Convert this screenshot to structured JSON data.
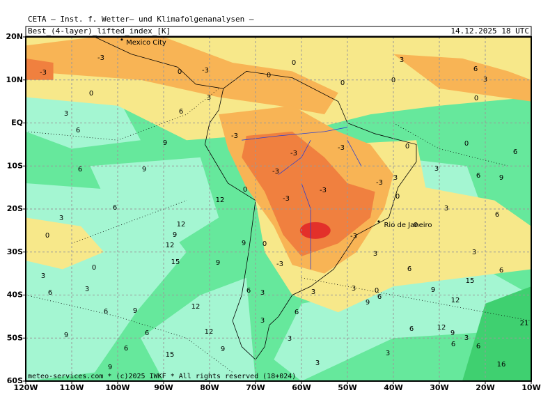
{
  "header": "CETA – Inst. f. Wetter– und Klimafolgenanalysen –",
  "title": "Best_(4-layer)_lifted_index_[K]",
  "datetime": "14.12.2025 18 UTC",
  "lat_labels": [
    "20N",
    "10N",
    "EQ",
    "10S",
    "20S",
    "30S",
    "40S",
    "50S",
    "60S"
  ],
  "lon_labels": [
    "120W",
    "110W",
    "100W",
    "90W",
    "80W",
    "70W",
    "60W",
    "50W",
    "40W",
    "30W",
    "20W",
    "10W"
  ],
  "cities": [
    "Mexico City",
    "Rio de Janeiro"
  ],
  "footer": "meteo-services.com * (c)2025 IWKF * All rights reserved (18+024)",
  "contour_labels": [
    -3,
    -3,
    -3,
    0,
    0,
    0,
    0,
    0,
    3,
    6,
    3,
    0,
    0,
    3,
    6,
    3,
    6,
    9,
    -3,
    -3,
    -3,
    0,
    0,
    6,
    6,
    9,
    -3,
    3,
    6,
    9,
    -3,
    3,
    -3,
    0,
    12,
    -3,
    0,
    6,
    3,
    6,
    3,
    12,
    0,
    0,
    9,
    12,
    9,
    0,
    -3,
    3,
    3,
    15,
    9,
    0,
    -3,
    6,
    6,
    3,
    6,
    3,
    3,
    3,
    0,
    6,
    9,
    15,
    3,
    6,
    9,
    12,
    12,
    6,
    9,
    6,
    3,
    21,
    12,
    9,
    6,
    9,
    6,
    12,
    3,
    3,
    6,
    6,
    9,
    6,
    3,
    15,
    3,
    16,
    9
  ]
}
